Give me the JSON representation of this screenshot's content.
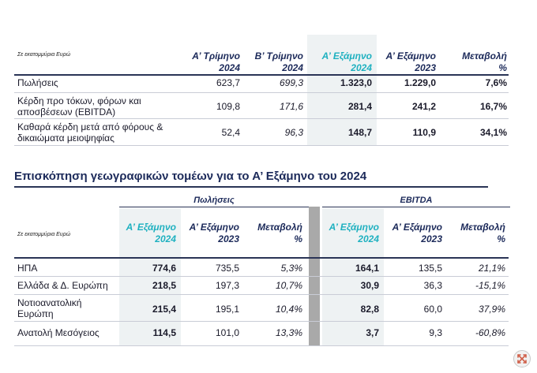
{
  "table1": {
    "unit_note": "Σε εκατομμύρια Ευρώ",
    "headers": [
      [
        "Α’ Τρίμηνο",
        "2024"
      ],
      [
        "Β’ Τρίμηνο",
        "2024"
      ],
      [
        "Α’ Εξάμηνο",
        "2024"
      ],
      [
        "Α’ Εξάμηνο",
        "2023"
      ],
      [
        "Μεταβολή",
        "%"
      ]
    ],
    "rows": [
      {
        "label": [
          "Πωλήσεις"
        ],
        "values": [
          "623,7",
          "699,3",
          "1.323,0",
          "1.229,0",
          "7,6%"
        ]
      },
      {
        "label": [
          "Κέρδη προ τόκων, φόρων και",
          "αποσβέσεων (EBITDA)"
        ],
        "values": [
          "109,8",
          "171,6",
          "281,4",
          "241,2",
          "16,7%"
        ]
      },
      {
        "label": [
          "Καθαρά κέρδη μετά από φόρους &",
          "δικαιώματα μειοψηφίας"
        ],
        "values": [
          "52,4",
          "96,3",
          "148,7",
          "110,9",
          "34,1%"
        ]
      }
    ]
  },
  "section_title": "Επισκόπηση γεωγραφικών τομέων για το Α’ Εξάμηνο του 2024",
  "table2": {
    "unit_note": "Σε εκατομμύρια Ευρώ",
    "group_sales": "Πωλήσεις",
    "group_ebitda": "EBITDA",
    "headers": [
      [
        "Α’ Εξάμηνο",
        "2024"
      ],
      [
        "Α’ Εξάμηνο",
        "2023"
      ],
      [
        "Μεταβολή",
        "%"
      ],
      [
        "Α’ Εξάμηνο",
        "2024"
      ],
      [
        "Α’ Εξάμηνο",
        "2023"
      ],
      [
        "Μεταβολή",
        "%"
      ]
    ],
    "rows": [
      {
        "label": [
          "ΗΠΑ"
        ],
        "values": [
          "774,6",
          "735,5",
          "5,3%",
          "164,1",
          "135,5",
          "21,1%"
        ]
      },
      {
        "label": [
          "Ελλάδα & Δ. Ευρώπη"
        ],
        "values": [
          "218,5",
          "197,3",
          "10,7%",
          "30,9",
          "36,3",
          "-15,1%"
        ]
      },
      {
        "label": [
          "Νοτιοανατολική",
          "Ευρώπη"
        ],
        "values": [
          "215,4",
          "195,1",
          "10,4%",
          "82,8",
          "60,0",
          "37,9%"
        ]
      },
      {
        "label": [
          "Ανατολή Μεσόγειος"
        ],
        "values": [
          "114,5",
          "101,0",
          "13,3%",
          "3,7",
          "9,3",
          "-60,8%"
        ]
      }
    ]
  },
  "icons": {
    "expand": "expand-arrows-icon"
  }
}
